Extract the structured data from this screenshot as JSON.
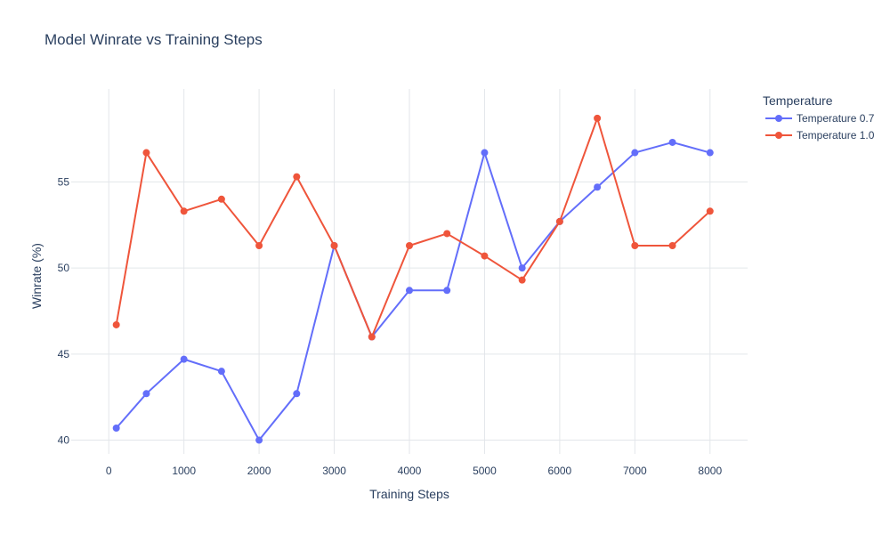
{
  "chart_data": {
    "type": "line",
    "title": "Model Winrate vs Training Steps",
    "xlabel": "Training Steps",
    "ylabel": "Winrate (%)",
    "xlim": [
      -500,
      8500
    ],
    "ylim": [
      39.2,
      60.4
    ],
    "x_ticks": [
      0,
      1000,
      2000,
      3000,
      4000,
      5000,
      6000,
      7000,
      8000
    ],
    "y_ticks": [
      40,
      45,
      50,
      55
    ],
    "grid": true,
    "legend": {
      "title": "Temperature",
      "position": "top-right"
    },
    "x": [
      100,
      500,
      1000,
      1500,
      2000,
      2500,
      3000,
      3500,
      4000,
      4500,
      5000,
      5500,
      6000,
      6500,
      7000,
      7500,
      8000
    ],
    "series": [
      {
        "name": "Temperature 0.7",
        "color": "#636efa",
        "values": [
          40.7,
          42.7,
          44.7,
          44.0,
          40.0,
          42.7,
          51.3,
          46.0,
          48.7,
          48.7,
          56.7,
          50.0,
          52.7,
          54.7,
          56.7,
          57.3,
          56.7
        ]
      },
      {
        "name": "Temperature 1.0",
        "color": "#ef553b",
        "values": [
          46.7,
          56.7,
          53.3,
          54.0,
          51.3,
          55.3,
          51.3,
          46.0,
          51.3,
          52.0,
          50.7,
          49.3,
          52.7,
          58.7,
          51.3,
          51.3,
          53.3
        ]
      }
    ]
  }
}
